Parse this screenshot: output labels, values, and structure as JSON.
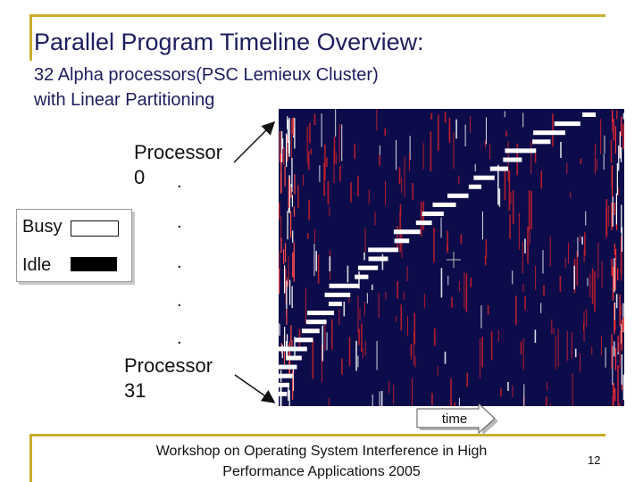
{
  "slide": {
    "title": "Parallel Program Timeline Overview:",
    "subtitle_line1": "32 Alpha processors(PSC Lemieux Cluster)",
    "subtitle_line2": "with Linear Partitioning",
    "processor_first_line1": "Processor",
    "processor_first_line2": "0",
    "processor_last_line1": "Processor",
    "processor_last_line2": "31",
    "dots": [
      ".",
      ".",
      ".",
      ".",
      "."
    ],
    "legend": {
      "busy_label": "Busy",
      "idle_label": "Idle",
      "busy_color": "#ffffff",
      "idle_color": "#000000"
    },
    "time_label": "time",
    "footer_line1": "Workshop on Operating System Interference in High",
    "footer_line2": "Performance Applications 2005",
    "page_number": "12"
  },
  "colors": {
    "rule": "#c8ae2e",
    "timeline_background": "#0c0c4a",
    "busy_mark": "#ffffff",
    "noise_mark": "#d0202a"
  }
}
